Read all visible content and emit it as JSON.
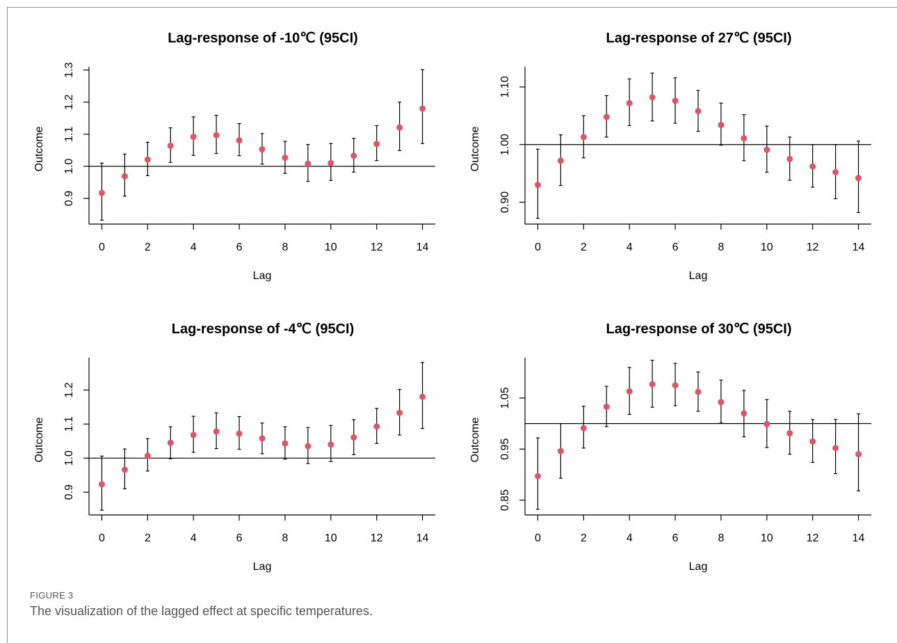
{
  "figure": {
    "label": "FIGURE 3",
    "caption": "The visualization of the lagged effect at specific temperatures."
  },
  "colors": {
    "point": "#df536b",
    "line": "#000000"
  },
  "chart_data": [
    {
      "type": "scatter",
      "title": "Lag-response of -10℃ (95CI)",
      "xlabel": "Lag",
      "ylabel": "Outcome",
      "x": [
        0,
        1,
        2,
        3,
        4,
        5,
        6,
        7,
        8,
        9,
        10,
        11,
        12,
        13,
        14
      ],
      "y": [
        0.917,
        0.969,
        1.021,
        1.064,
        1.092,
        1.097,
        1.081,
        1.053,
        1.027,
        1.008,
        1.01,
        1.033,
        1.07,
        1.121,
        1.18
      ],
      "ci_low": [
        0.832,
        0.907,
        0.971,
        1.012,
        1.034,
        1.04,
        1.033,
        1.007,
        0.978,
        0.953,
        0.956,
        0.982,
        1.018,
        1.049,
        1.071
      ],
      "ci_high": [
        1.01,
        1.038,
        1.075,
        1.12,
        1.154,
        1.159,
        1.133,
        1.102,
        1.078,
        1.068,
        1.071,
        1.087,
        1.127,
        1.2,
        1.301
      ],
      "xlim": [
        -0.56,
        14.56
      ],
      "ylim": [
        0.82,
        1.31
      ],
      "xticks": [
        "0",
        "2",
        "4",
        "6",
        "8",
        "10",
        "12",
        "14"
      ],
      "yticks": [
        "0.9",
        "1.0",
        "1.1",
        "1.2",
        "1.3"
      ],
      "reference_line": 1.0
    },
    {
      "type": "scatter",
      "title": "Lag-response of 27℃ (95CI)",
      "xlabel": "Lag",
      "ylabel": "Outcome",
      "x": [
        0,
        1,
        2,
        3,
        4,
        5,
        6,
        7,
        8,
        9,
        10,
        11,
        12,
        13,
        14
      ],
      "y": [
        0.93,
        0.972,
        1.013,
        1.048,
        1.072,
        1.082,
        1.076,
        1.058,
        1.034,
        1.011,
        0.991,
        0.975,
        0.962,
        0.952,
        0.942
      ],
      "ci_low": [
        0.872,
        0.929,
        0.977,
        1.013,
        1.033,
        1.041,
        1.037,
        1.023,
        0.999,
        0.972,
        0.952,
        0.938,
        0.926,
        0.906,
        0.882
      ],
      "ci_high": [
        0.992,
        1.017,
        1.05,
        1.085,
        1.114,
        1.124,
        1.116,
        1.094,
        1.072,
        1.052,
        1.032,
        1.013,
        1.0,
        1.0,
        1.006
      ],
      "xlim": [
        -0.56,
        14.56
      ],
      "ylim": [
        0.862,
        1.135
      ],
      "xticks": [
        "0",
        "2",
        "4",
        "6",
        "8",
        "10",
        "12",
        "14"
      ],
      "yticks": [
        "0.90",
        "1.00",
        "1.10"
      ],
      "reference_line": 1.0
    },
    {
      "type": "scatter",
      "title": "Lag-response of -4℃ (95CI)",
      "xlabel": "Lag",
      "ylabel": "Outcome",
      "x": [
        0,
        1,
        2,
        3,
        4,
        5,
        6,
        7,
        8,
        9,
        10,
        11,
        12,
        13,
        14
      ],
      "y": [
        0.923,
        0.966,
        1.007,
        1.045,
        1.068,
        1.078,
        1.072,
        1.058,
        1.043,
        1.035,
        1.04,
        1.061,
        1.093,
        1.133,
        1.18
      ],
      "ci_low": [
        0.847,
        0.91,
        0.962,
        0.998,
        1.017,
        1.028,
        1.026,
        1.013,
        0.997,
        0.984,
        0.99,
        1.01,
        1.043,
        1.068,
        1.087
      ],
      "ci_high": [
        1.006,
        1.027,
        1.057,
        1.092,
        1.123,
        1.133,
        1.122,
        1.103,
        1.092,
        1.09,
        1.096,
        1.113,
        1.146,
        1.202,
        1.281
      ],
      "xlim": [
        -0.56,
        14.56
      ],
      "ylim": [
        0.833,
        1.295
      ],
      "xticks": [
        "0",
        "2",
        "4",
        "6",
        "8",
        "10",
        "12",
        "14"
      ],
      "yticks": [
        "0.9",
        "1.0",
        "1.1",
        "1.2"
      ],
      "reference_line": 1.0
    },
    {
      "type": "scatter",
      "title": "Lag-response of 30℃ (95CI)",
      "xlabel": "Lag",
      "ylabel": "Outcome",
      "x": [
        0,
        1,
        2,
        3,
        4,
        5,
        6,
        7,
        8,
        9,
        10,
        11,
        12,
        13,
        14
      ],
      "y": [
        0.897,
        0.946,
        0.991,
        1.033,
        1.063,
        1.077,
        1.075,
        1.062,
        1.042,
        1.02,
        0.999,
        0.981,
        0.965,
        0.952,
        0.94
      ],
      "ci_low": [
        0.832,
        0.893,
        0.952,
        0.994,
        1.018,
        1.032,
        1.035,
        1.024,
        1.001,
        0.974,
        0.953,
        0.94,
        0.924,
        0.902,
        0.868
      ],
      "ci_high": [
        0.972,
        1.0,
        1.034,
        1.073,
        1.11,
        1.124,
        1.118,
        1.101,
        1.085,
        1.065,
        1.047,
        1.024,
        1.008,
        1.008,
        1.019
      ],
      "xlim": [
        -0.56,
        14.56
      ],
      "ylim": [
        0.821,
        1.129
      ],
      "xticks": [
        "0",
        "2",
        "4",
        "6",
        "8",
        "10",
        "12",
        "14"
      ],
      "yticks": [
        "0.85",
        "0.95",
        "1.05"
      ],
      "reference_line": 1.0
    }
  ]
}
